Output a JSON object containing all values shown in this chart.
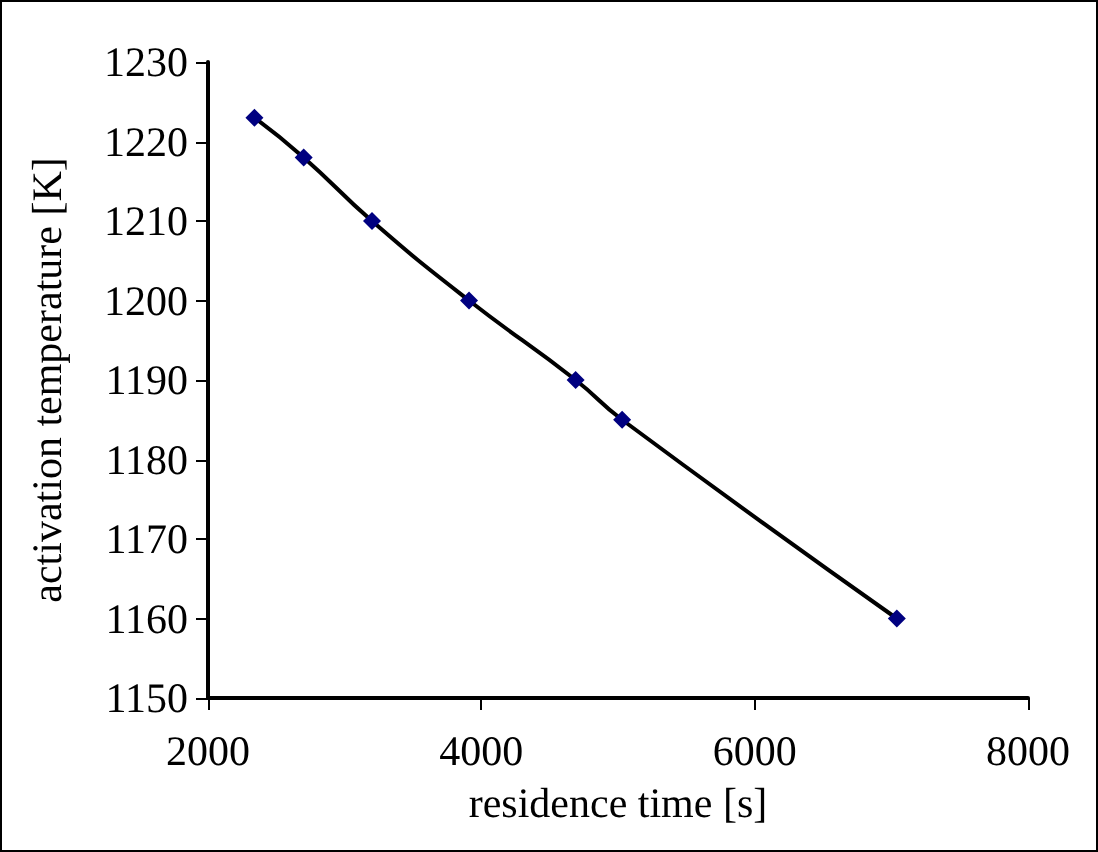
{
  "chart_data": {
    "type": "line",
    "xlabel": "residence time [s]",
    "ylabel": "activation temperature [K]",
    "x": [
      2340,
      2700,
      3200,
      3910,
      4690,
      5030,
      7040
    ],
    "series": [
      {
        "color": "#000080",
        "values": [
          1223,
          1218,
          1210,
          1200,
          1190,
          1185,
          1160
        ]
      }
    ],
    "xlim": [
      2000,
      8000
    ],
    "xticks": [
      2000,
      4000,
      6000,
      8000
    ],
    "ylim": [
      1150,
      1230
    ],
    "yticks": [
      1150,
      1160,
      1170,
      1180,
      1190,
      1200,
      1210,
      1220,
      1230
    ],
    "grid": false,
    "marker": "diamond",
    "line_style": "solid"
  }
}
